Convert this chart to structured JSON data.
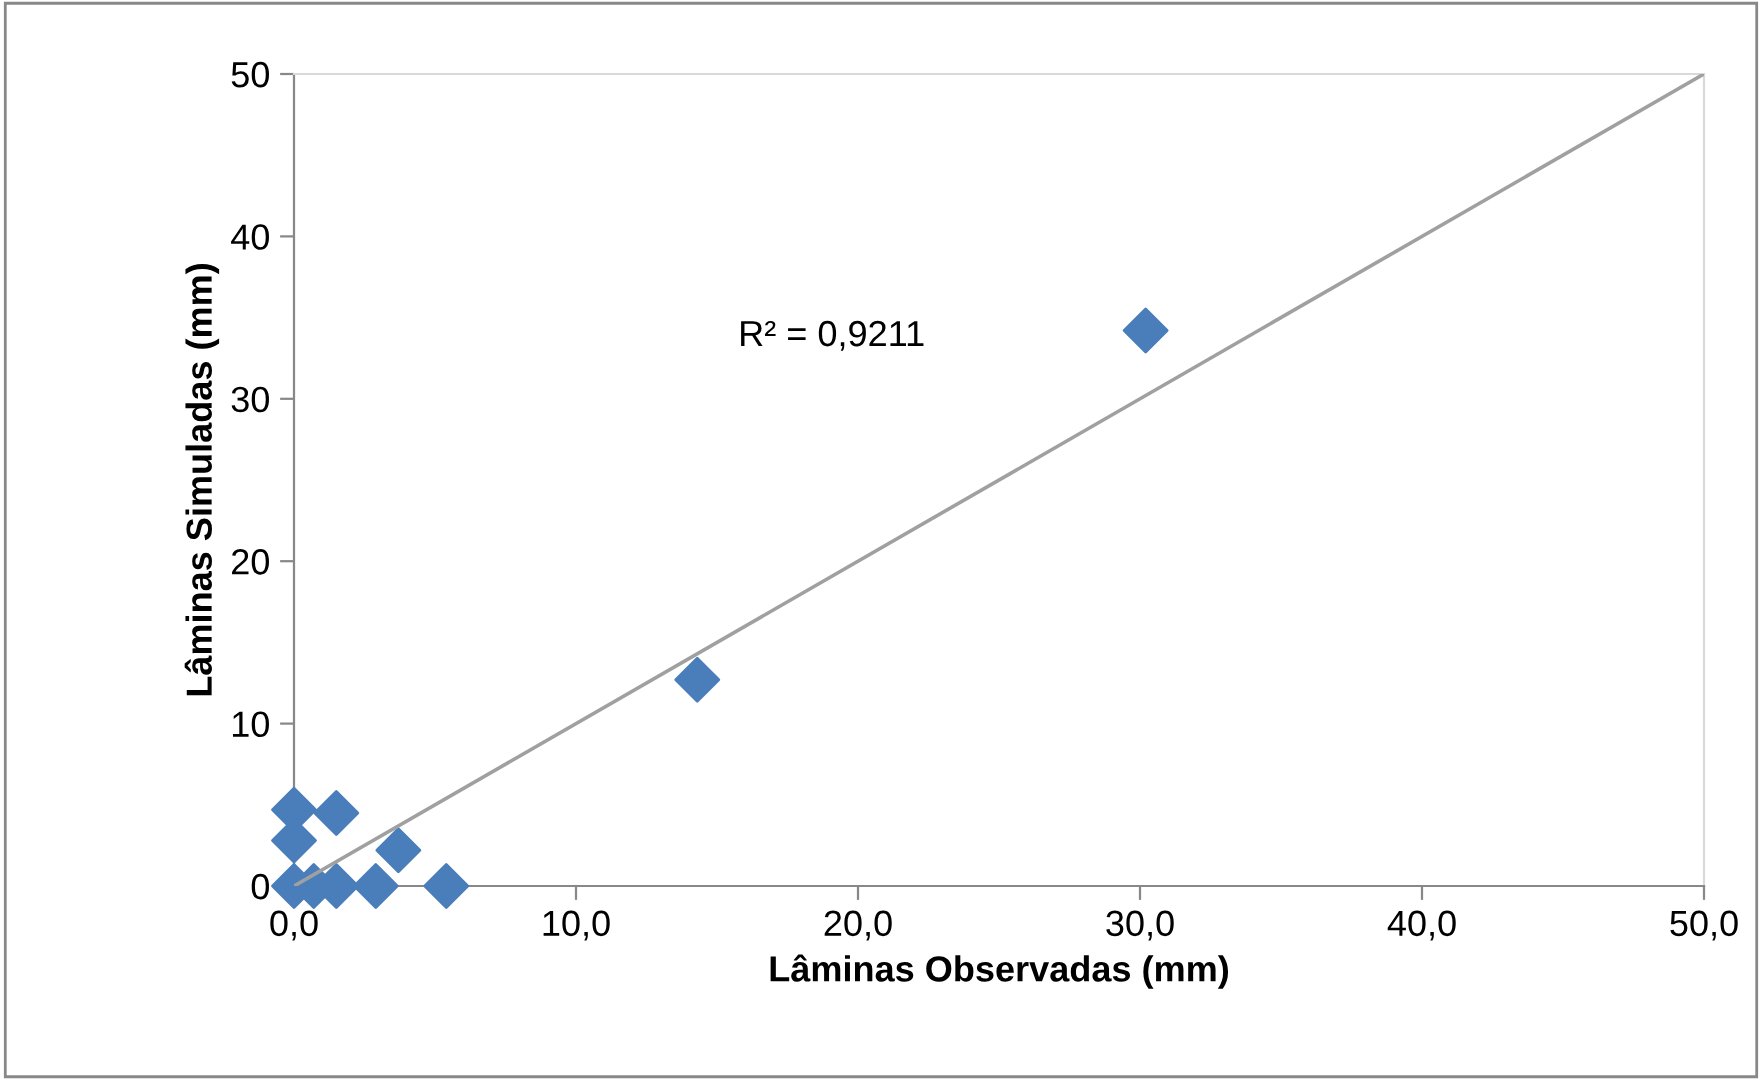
{
  "chart_data": {
    "type": "scatter",
    "xlabel": "Lâminas Observadas (mm)",
    "ylabel": "Lâminas Simuladas (mm)",
    "xlim": [
      0,
      50
    ],
    "ylim": [
      0,
      50
    ],
    "xticks": [
      {
        "value": 0,
        "label": "0,0"
      },
      {
        "value": 10,
        "label": "10,0"
      },
      {
        "value": 20,
        "label": "20,0"
      },
      {
        "value": 30,
        "label": "30,0"
      },
      {
        "value": 40,
        "label": "40,0"
      },
      {
        "value": 50,
        "label": "50,0"
      }
    ],
    "yticks": [
      0,
      10,
      20,
      30,
      40,
      50
    ],
    "grid": false,
    "legend": false,
    "marker": "diamond",
    "series": [
      {
        "color": "#4a7ebb",
        "x": [
          0,
          0,
          1.5,
          3.7,
          5.4,
          2.9,
          1.5,
          0.7,
          0,
          14.3,
          30.2
        ],
        "values": [
          4.7,
          2.8,
          4.5,
          2.2,
          0,
          0,
          0,
          0,
          0,
          12.7,
          34.2
        ]
      },
      {
        "type": "line",
        "color": "#a0a0a0",
        "marker": "none",
        "x": [
          0,
          50
        ],
        "values": [
          0,
          50
        ]
      }
    ],
    "annotations": [
      "R² = 0,9211"
    ]
  }
}
